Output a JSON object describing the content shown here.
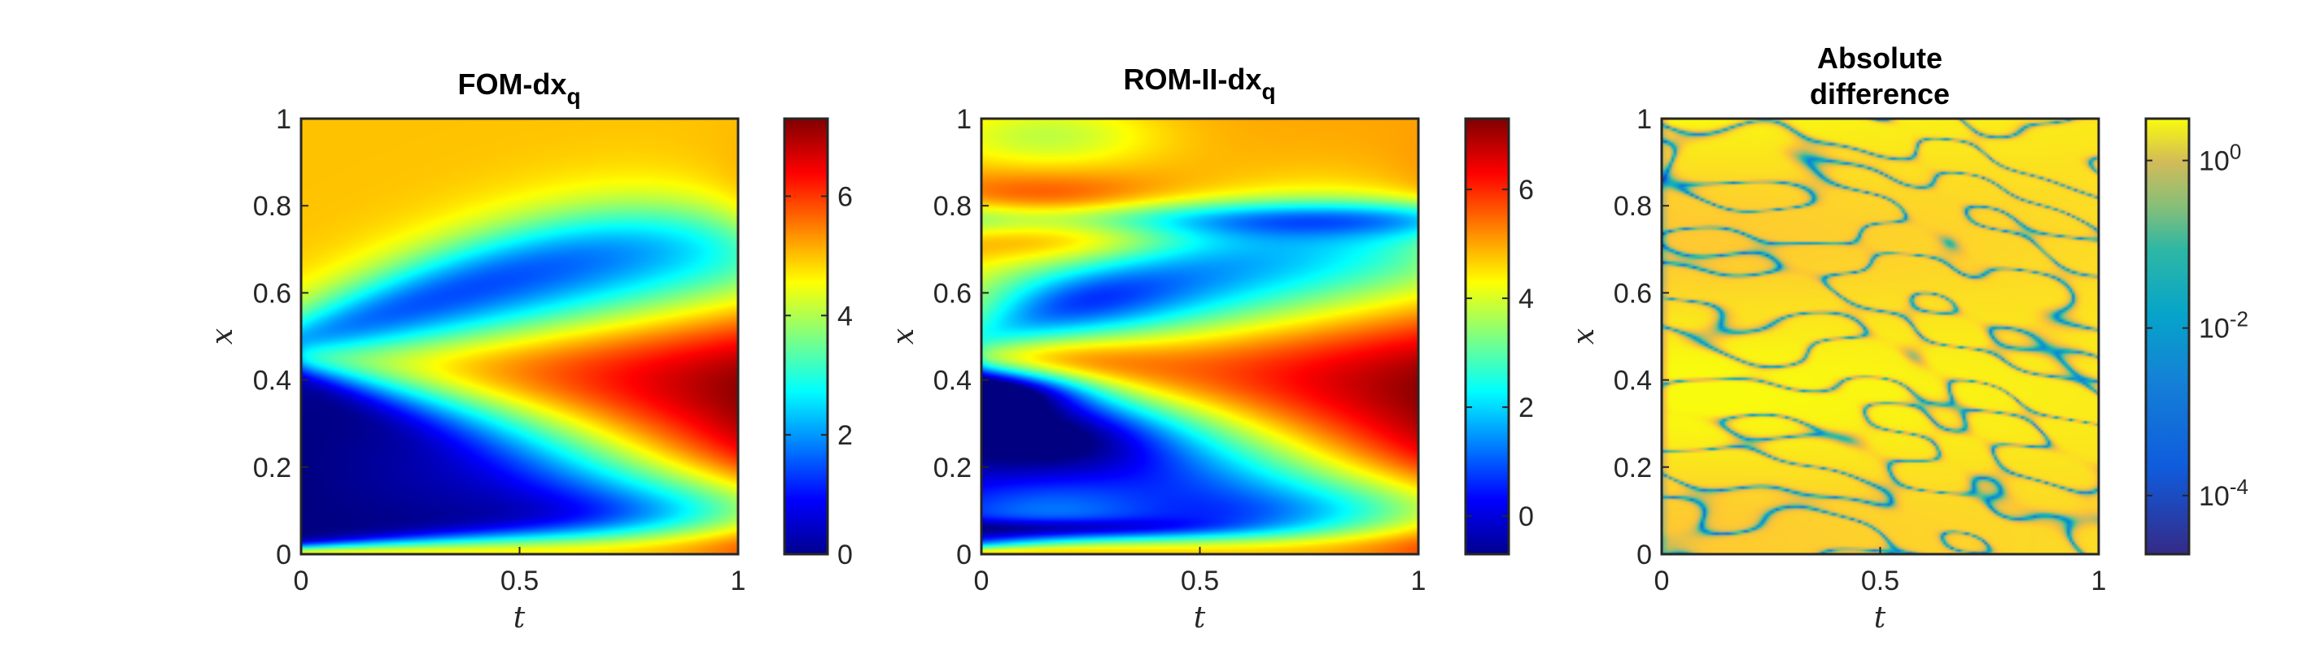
{
  "chart_data": [
    {
      "type": "heatmap",
      "title": "FOM-dx",
      "title_subscript": "q",
      "xlabel": "t",
      "ylabel": "x",
      "xlim": [
        0,
        1
      ],
      "ylim": [
        0,
        1
      ],
      "xticks": [
        "0",
        "0.5",
        "1"
      ],
      "yticks": [
        "0",
        "0.2",
        "0.4",
        "0.6",
        "0.8",
        "1"
      ],
      "colormap": "jet",
      "colorbar": {
        "scale": "linear",
        "range": [
          0,
          7.3
        ],
        "ticks": [
          0,
          2,
          4,
          6
        ],
        "tick_labels": [
          "0",
          "2",
          "4",
          "6"
        ]
      }
    },
    {
      "type": "heatmap",
      "title": "ROM-II-dx",
      "title_subscript": "q",
      "xlabel": "t",
      "ylabel": "x",
      "xlim": [
        0,
        1
      ],
      "ylim": [
        0,
        1
      ],
      "xticks": [
        "0",
        "0.5",
        "1"
      ],
      "yticks": [
        "0",
        "0.2",
        "0.4",
        "0.6",
        "0.8",
        "1"
      ],
      "colormap": "jet",
      "colorbar": {
        "scale": "linear",
        "range": [
          -0.7,
          7.3
        ],
        "ticks": [
          0,
          2,
          4,
          6
        ],
        "tick_labels": [
          "0",
          "2",
          "4",
          "6"
        ]
      }
    },
    {
      "type": "heatmap",
      "title_lines": [
        "Absolute",
        "difference"
      ],
      "xlabel": "t",
      "ylabel": "x",
      "xlim": [
        0,
        1
      ],
      "ylim": [
        0,
        1
      ],
      "xticks": [
        "0",
        "0.5",
        "1"
      ],
      "yticks": [
        "0",
        "0.2",
        "0.4",
        "0.6",
        "0.8",
        "1"
      ],
      "colormap": "parula",
      "colorbar": {
        "scale": "log",
        "range": [
          -4.7,
          0.5
        ],
        "ticks": [
          -4,
          -2,
          0
        ],
        "tick_bases": [
          "10",
          "10",
          "10"
        ],
        "tick_exponents": [
          "-4",
          "-2",
          "0"
        ]
      }
    }
  ]
}
